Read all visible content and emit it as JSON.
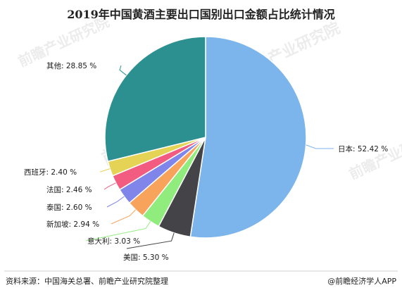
{
  "chart_data": {
    "type": "pie",
    "title": "2019年中国黄酒主要出口国别出口金额占比统计情况",
    "slices": [
      {
        "label": "日本",
        "value": 52.42,
        "display": "日本: 52.42 %",
        "color": "#7cb5ec"
      },
      {
        "label": "美国",
        "value": 5.3,
        "display": "美国: 5.30 %",
        "color": "#434348"
      },
      {
        "label": "意大利",
        "value": 3.03,
        "display": "意大利: 3.03 %",
        "color": "#90ed7d"
      },
      {
        "label": "新加坡",
        "value": 2.94,
        "display": "新加坡: 2.94 %",
        "color": "#f7a35c"
      },
      {
        "label": "泰国",
        "value": 2.6,
        "display": "泰国: 2.60 %",
        "color": "#8085e9"
      },
      {
        "label": "法国",
        "value": 2.46,
        "display": "法国: 2.46 %",
        "color": "#f15c80"
      },
      {
        "label": "西班牙",
        "value": 2.4,
        "display": "西班牙: 2.40 %",
        "color": "#e4d354"
      },
      {
        "label": "其他",
        "value": 28.85,
        "display": "其他: 28.85 %",
        "color": "#2b908f"
      }
    ],
    "start_angle": "top, clockwise"
  },
  "footer": {
    "source": "资料来源：中国海关总署、前瞻产业研究院整理",
    "brand": "@前瞻经济学人APP"
  },
  "watermark": {
    "text": "前瞻产业研究院"
  }
}
